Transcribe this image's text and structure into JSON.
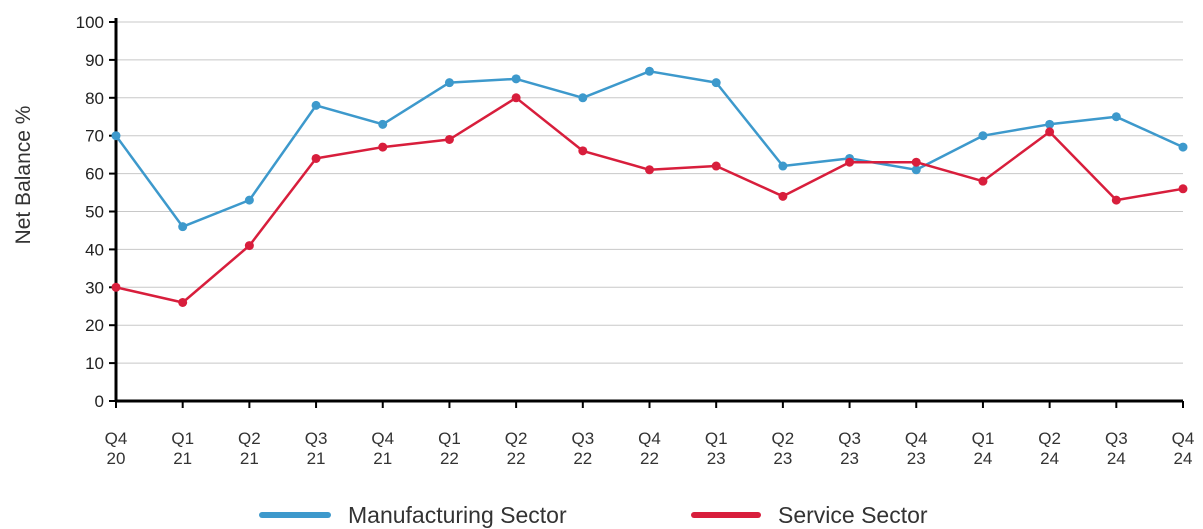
{
  "chart_data": {
    "type": "line",
    "title": "",
    "xlabel": "",
    "ylabel": "Net Balance %",
    "ylim": [
      0,
      100
    ],
    "yticks": [
      0,
      10,
      20,
      30,
      40,
      50,
      60,
      70,
      80,
      90,
      100
    ],
    "grid": true,
    "legend_position": "bottom",
    "categories": [
      [
        "Q4",
        "20"
      ],
      [
        "Q1",
        "21"
      ],
      [
        "Q2",
        "21"
      ],
      [
        "Q3",
        "21"
      ],
      [
        "Q4",
        "21"
      ],
      [
        "Q1",
        "22"
      ],
      [
        "Q2",
        "22"
      ],
      [
        "Q3",
        "22"
      ],
      [
        "Q4",
        "22"
      ],
      [
        "Q1",
        "23"
      ],
      [
        "Q2",
        "23"
      ],
      [
        "Q3",
        "23"
      ],
      [
        "Q4",
        "23"
      ],
      [
        "Q1",
        "24"
      ],
      [
        "Q2",
        "24"
      ],
      [
        "Q3",
        "24"
      ],
      [
        "Q4",
        "24"
      ]
    ],
    "series": [
      {
        "name": "Manufacturing Sector",
        "color": "#3d99cc",
        "values": [
          70,
          46,
          53,
          78,
          73,
          84,
          85,
          80,
          87,
          84,
          62,
          64,
          61,
          70,
          73,
          75,
          67
        ]
      },
      {
        "name": "Service Sector",
        "color": "#d81e3c",
        "values": [
          30,
          26,
          41,
          64,
          67,
          69,
          80,
          66,
          61,
          62,
          54,
          63,
          63,
          58,
          71,
          53,
          56
        ]
      }
    ]
  }
}
